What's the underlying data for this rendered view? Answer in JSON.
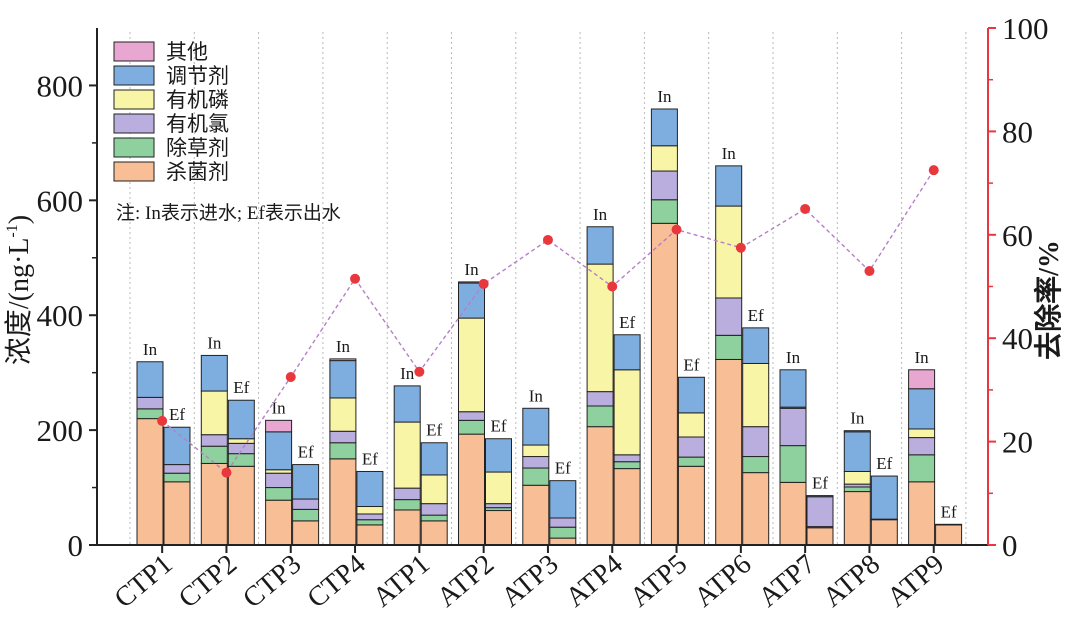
{
  "chart_data": {
    "type": "bar",
    "subtype": "stacked-bar-with-line",
    "categories": [
      "CTP1",
      "CTP2",
      "CTP3",
      "CTP4",
      "ATP1",
      "ATP2",
      "ATP3",
      "ATP4",
      "ATP5",
      "ATP6",
      "ATP7",
      "ATP8",
      "ATP9"
    ],
    "bar_labels": {
      "in": "In",
      "ef": "Ef"
    },
    "stack_order": [
      "杀菌剂",
      "除草剂",
      "有机氯",
      "有机磷",
      "调节剂",
      "其他"
    ],
    "series": [
      {
        "name": "杀菌剂",
        "color": "#F8BE96",
        "in": [
          220,
          142,
          78,
          150,
          61,
          193,
          104,
          206,
          560,
          323,
          109,
          93,
          110
        ],
        "ef": [
          110,
          137,
          42,
          35,
          42,
          60,
          12,
          133,
          137,
          126,
          30,
          44,
          35
        ]
      },
      {
        "name": "除草剂",
        "color": "#8ED19E",
        "in": [
          17,
          30,
          22,
          28,
          18,
          24,
          30,
          36,
          41,
          42,
          64,
          8,
          47
        ],
        "ef": [
          15,
          22,
          20,
          9,
          10,
          5,
          19,
          12,
          16,
          28,
          2,
          1,
          1
        ]
      },
      {
        "name": "有机氯",
        "color": "#B9AEDD",
        "in": [
          20,
          20,
          25,
          20,
          20,
          15,
          20,
          25,
          50,
          65,
          65,
          5,
          30
        ],
        "ef": [
          15,
          18,
          18,
          10,
          20,
          7,
          16,
          12,
          35,
          52,
          52,
          0,
          0
        ]
      },
      {
        "name": "有机磷",
        "color": "#F9F5A7",
        "in": [
          0,
          76,
          6,
          58,
          115,
          163,
          20,
          222,
          44,
          160,
          2,
          22,
          15
        ],
        "ef": [
          0,
          8,
          0,
          13,
          50,
          55,
          0,
          148,
          42,
          110,
          0,
          0,
          0
        ]
      },
      {
        "name": "调节剂",
        "color": "#7EAEE0",
        "in": [
          62,
          62,
          66,
          65,
          63,
          61,
          64,
          65,
          64,
          70,
          65,
          69,
          70
        ],
        "ef": [
          65,
          67,
          60,
          61,
          56,
          58,
          65,
          61,
          62,
          62,
          2,
          75,
          0
        ]
      },
      {
        "name": "其他",
        "color": "#E8A7D0",
        "in": [
          0,
          0,
          20,
          3,
          0,
          2,
          0,
          0,
          0,
          0,
          0,
          2,
          33
        ],
        "ef": [
          0,
          0,
          0,
          0,
          0,
          0,
          0,
          0,
          0,
          0,
          0,
          0,
          0
        ]
      }
    ],
    "removal_rate": {
      "name": "去除率",
      "values": [
        24,
        14,
        32.5,
        51.5,
        33.5,
        50.5,
        59,
        50,
        61,
        57.5,
        65,
        53,
        72.5
      ],
      "color": "#E8383D",
      "line_color": "#B57FC8",
      "line_style": "dashed"
    },
    "y_left": {
      "label_main": "浓度/(ng·L",
      "label_sup": "-1",
      "label_end": ")",
      "min": 0,
      "max": 900,
      "ticks": [
        "0",
        "200",
        "400",
        "600",
        "800"
      ]
    },
    "y_right": {
      "label": "去除率/%",
      "min": 0,
      "max": 100,
      "ticks": [
        "0",
        "20",
        "40",
        "60",
        "80",
        "100"
      ],
      "color": "#E8383D"
    },
    "legend_placement": "top-left",
    "note": "注: In表示进水; Ef表示出水",
    "grid": {
      "vertical_dotted": true,
      "horizontal": false
    }
  }
}
